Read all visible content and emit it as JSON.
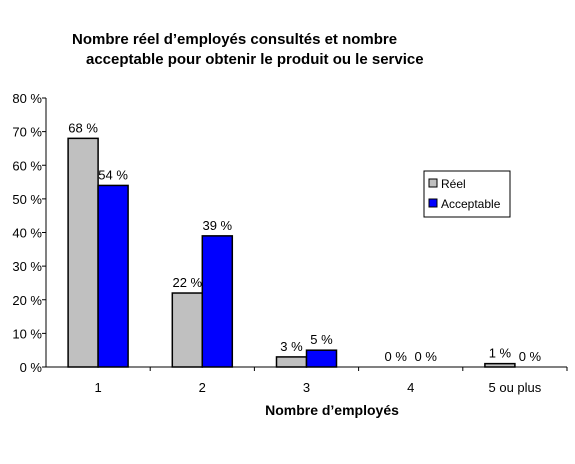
{
  "chart_data": {
    "type": "bar",
    "title_line1": "Nombre réel d’employés consultés et nombre",
    "title_line2": "acceptable pour obtenir le produit ou le service",
    "xlabel": "Nombre d’employés",
    "ylabel": "",
    "categories": [
      "1",
      "2",
      "3",
      "4",
      "5 ou plus"
    ],
    "series": [
      {
        "name": "Réel",
        "color": "#c0c0c0",
        "values": [
          68,
          22,
          3,
          0,
          1
        ],
        "labels": [
          "68 %",
          "22 %",
          "3 %",
          "0 %",
          "1 %"
        ]
      },
      {
        "name": "Acceptable",
        "color": "#0000ff",
        "values": [
          54,
          39,
          5,
          0,
          0
        ],
        "labels": [
          "54 %",
          "39 %",
          "5 %",
          "0 %",
          "0 %"
        ]
      }
    ],
    "ylim": [
      0,
      80
    ],
    "yticks": [
      0,
      10,
      20,
      30,
      40,
      50,
      60,
      70,
      80
    ],
    "ytick_labels": [
      "0 %",
      "10 %",
      "20 %",
      "30 %",
      "40 %",
      "50 %",
      "60 %",
      "70 %",
      "80 %"
    ],
    "grid": false,
    "legend_position": "right"
  }
}
